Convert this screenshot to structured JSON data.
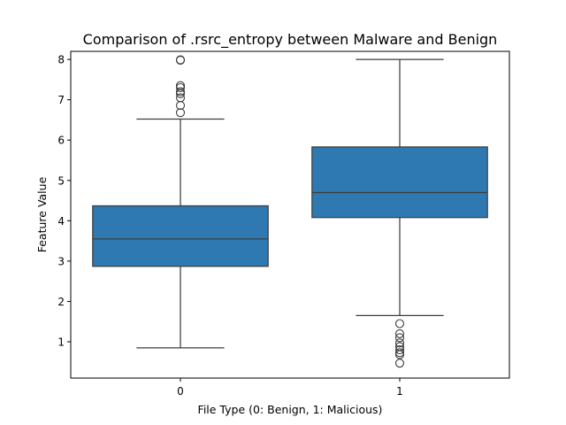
{
  "chart_data": {
    "type": "box",
    "title": "Comparison of .rsrc_entropy between Malware and Benign",
    "xlabel": "File Type (0: Benign, 1: Malicious)",
    "ylabel": "Feature Value",
    "categories": [
      "0",
      "1"
    ],
    "ylim": [
      0.1,
      8.2
    ],
    "yticks": [
      1,
      2,
      3,
      4,
      5,
      6,
      7,
      8
    ],
    "grid": false,
    "box_color": "#2e79b1",
    "line_color": "#3d3d3d",
    "boxes": [
      {
        "category": "0",
        "whisker_low": 0.85,
        "q1": 2.87,
        "median": 3.55,
        "q3": 4.37,
        "whisker_high": 6.52,
        "outliers": [
          6.68,
          6.86,
          7.05,
          7.15,
          7.2,
          7.3,
          7.35,
          7.98,
          7.99
        ]
      },
      {
        "category": "1",
        "whisker_low": 1.65,
        "q1": 4.08,
        "median": 4.7,
        "q3": 5.83,
        "whisker_high": 8.0,
        "outliers": [
          1.45,
          1.2,
          1.1,
          0.97,
          0.88,
          0.8,
          0.73,
          0.68,
          0.47
        ]
      }
    ]
  }
}
